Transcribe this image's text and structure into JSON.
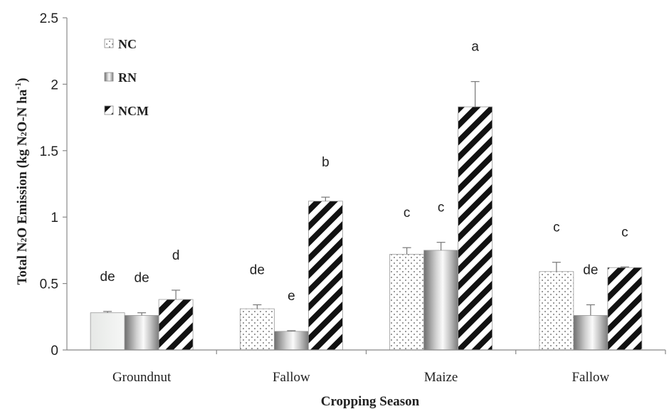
{
  "chart_data": {
    "type": "bar",
    "xlabel": "Cropping Season",
    "ylabel_parts": {
      "a": "Total N",
      "b": "2",
      "c": "O Emission (kg N",
      "d": "2",
      "e": "O-N ha",
      "f": "-1",
      "g": ")"
    },
    "ylim": [
      0,
      2.5
    ],
    "yticks": [
      "0",
      "0.5",
      "1",
      "1.5",
      "2",
      "2.5"
    ],
    "categories": [
      "Groundnut",
      "Fallow",
      "Maize",
      "Fallow"
    ],
    "series": [
      {
        "name": "NC",
        "values": [
          0.28,
          0.31,
          0.72,
          0.59
        ],
        "errors": [
          0.01,
          0.03,
          0.05,
          0.07
        ],
        "letters": [
          "de",
          "de",
          "c",
          "c"
        ]
      },
      {
        "name": "RN",
        "values": [
          0.26,
          0.14,
          0.75,
          0.26
        ],
        "errors": [
          0.02,
          0.005,
          0.06,
          0.08
        ],
        "letters": [
          "de",
          "e",
          "c",
          "de"
        ]
      },
      {
        "name": "NCM",
        "values": [
          0.38,
          1.12,
          1.83,
          0.62
        ],
        "errors": [
          0.07,
          0.03,
          0.19,
          0.005
        ],
        "letters": [
          "d",
          "b",
          "a",
          "c"
        ]
      }
    ],
    "grid": false,
    "legend_position": "top-left"
  }
}
